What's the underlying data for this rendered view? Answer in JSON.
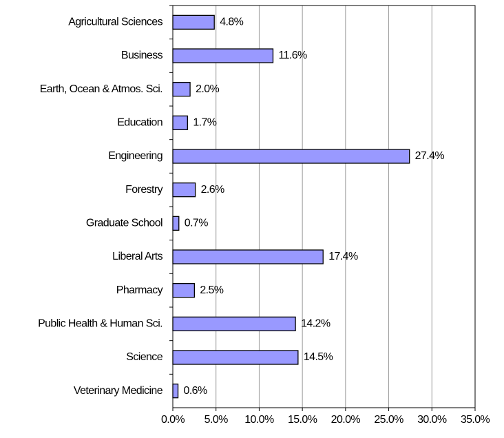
{
  "chart_data": {
    "type": "bar",
    "orientation": "horizontal",
    "categories": [
      "Agricultural Sciences",
      "Business",
      "Earth, Ocean & Atmos. Sci.",
      "Education",
      "Engineering",
      "Forestry",
      "Graduate School",
      "Liberal Arts",
      "Pharmacy",
      "Public Health & Human Sci.",
      "Science",
      "Veterinary Medicine"
    ],
    "values": [
      4.8,
      11.6,
      2.0,
      1.7,
      27.4,
      2.6,
      0.7,
      17.4,
      2.5,
      14.2,
      14.5,
      0.6
    ],
    "value_labels": [
      "4.8%",
      "11.6%",
      "2.0%",
      "1.7%",
      "27.4%",
      "2.6%",
      "0.7%",
      "17.4%",
      "2.5%",
      "14.2%",
      "14.5%",
      "0.6%"
    ],
    "color": "#9999ff",
    "xlim": [
      0,
      35
    ],
    "xticks": [
      {
        "value": 0,
        "label": "0.0%"
      },
      {
        "value": 5,
        "label": "5.0%"
      },
      {
        "value": 10,
        "label": "10.0%"
      },
      {
        "value": 15,
        "label": "15.0%"
      },
      {
        "value": 20,
        "label": "20.0%"
      },
      {
        "value": 25,
        "label": "25.0%"
      },
      {
        "value": 30,
        "label": "30.0%"
      },
      {
        "value": 35,
        "label": "35.0%"
      }
    ],
    "grid": true
  }
}
